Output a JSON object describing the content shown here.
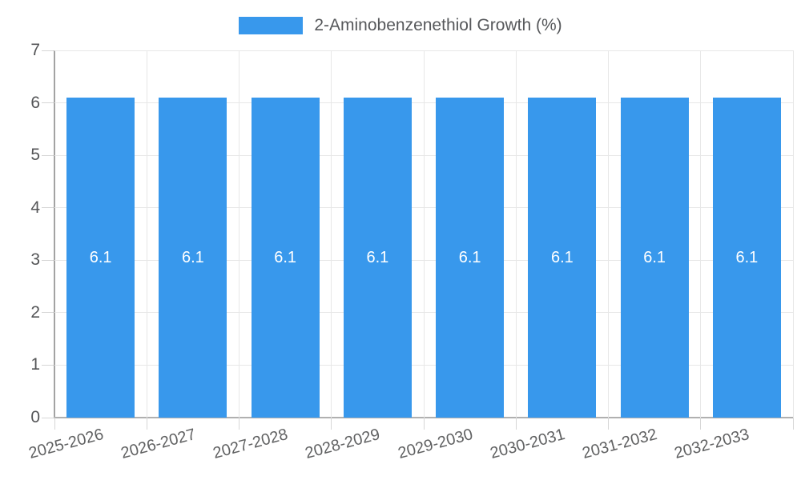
{
  "chart_data": {
    "type": "bar",
    "title": "2-Aminobenzenethiol Growth (%)",
    "categories": [
      "2025-2026",
      "2026-2027",
      "2027-2028",
      "2028-2029",
      "2029-2030",
      "2030-2031",
      "2031-2032",
      "2032-2033"
    ],
    "values": [
      6.1,
      6.1,
      6.1,
      6.1,
      6.1,
      6.1,
      6.1,
      6.1
    ],
    "value_labels": [
      "6.1",
      "6.1",
      "6.1",
      "6.1",
      "6.1",
      "6.1",
      "6.1",
      "6.1"
    ],
    "xlabel": "",
    "ylabel": "",
    "ylim": [
      0,
      7
    ],
    "y_ticks": [
      0,
      1,
      2,
      3,
      4,
      5,
      6,
      7
    ],
    "grid": true,
    "legend_position": "top",
    "x_label_rotation_deg": -15,
    "colors": {
      "bar": "#3898ec",
      "bar_value_text": "#ffffff",
      "axis_text": "#545557",
      "gridline": "#e7e7e7",
      "axis_line": "#a8a8a8"
    }
  }
}
